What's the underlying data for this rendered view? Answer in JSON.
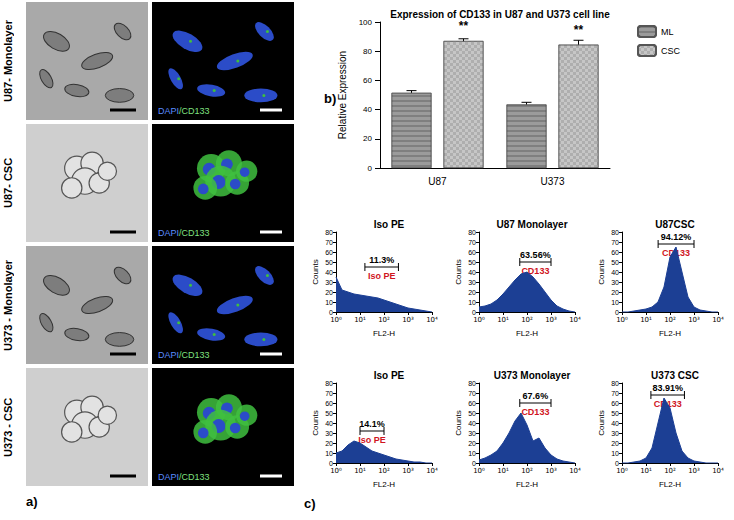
{
  "panel_a": {
    "panel_label": "a)",
    "rows": [
      {
        "label": "U87- Monolayer",
        "stain_label": "DAPI/CD133"
      },
      {
        "label": "U87- CSC",
        "stain_label": "DAPI/CD133"
      },
      {
        "label": "U373 - Monolayer",
        "stain_label": "DAPI/CD133"
      },
      {
        "label": "U373 - CSC",
        "stain_label": "DAPI/CD133"
      }
    ]
  },
  "chart_data": [
    {
      "type": "bar",
      "panel_label": "b)",
      "title": "Expression of CD133 in U87 and U373 cell line",
      "y_label": "Relative Expression",
      "categories": [
        "U87",
        "U373"
      ],
      "series": [
        {
          "name": "ML",
          "color": "#9b9b9b",
          "values": [
            51.5,
            43.5
          ],
          "errors": [
            1.5,
            1.5
          ]
        },
        {
          "name": "CSC",
          "color": "#c6c6c6",
          "values": [
            87,
            84.5
          ],
          "errors": [
            1.5,
            3
          ],
          "annotations": [
            "**",
            "**"
          ]
        }
      ],
      "ylim": [
        0,
        100
      ],
      "yticks": [
        0,
        20,
        40,
        60,
        80,
        100
      ],
      "legend": "top-right",
      "grid": false
    },
    {
      "type": "area",
      "title": "Iso PE",
      "x_label": "FL2-H",
      "y_label": "Counts",
      "color": "#1c3f94",
      "log": "x",
      "x": [
        1,
        1.78,
        3.16,
        5.62,
        10,
        17.8,
        31.6,
        56.2,
        100,
        178,
        316,
        562,
        1000,
        1780,
        3160,
        5620,
        10000
      ],
      "values": [
        35,
        22,
        20,
        18,
        17,
        16,
        15,
        14,
        12,
        10,
        8,
        6,
        4,
        3,
        2,
        1,
        0
      ],
      "xlim": [
        1,
        10000
      ],
      "xticks": [
        {
          "value": 1,
          "label": "10⁰"
        },
        {
          "value": 10,
          "label": "10¹"
        },
        {
          "value": 100,
          "label": "10²"
        },
        {
          "value": 1000,
          "label": "10³"
        },
        {
          "value": 10000,
          "label": "10⁴"
        }
      ],
      "ylim": [
        0,
        80
      ],
      "yticks": [
        0,
        10,
        20,
        30,
        40,
        50,
        60,
        70,
        80
      ],
      "grid": false,
      "gate": {
        "range": [
          16,
          400
        ],
        "percent_label": "11.3%",
        "label": "Iso PE",
        "color": "#d0141e"
      }
    },
    {
      "type": "area",
      "title": "U87 Monolayer",
      "x_label": "FL2-H",
      "y_label": "Counts",
      "color": "#1c3f94",
      "log": "x",
      "x": [
        1,
        1.78,
        3.16,
        5.62,
        10,
        17.8,
        31.6,
        56.2,
        100,
        178,
        316,
        562,
        1000,
        1780,
        3160,
        5620,
        10000
      ],
      "values": [
        5,
        6,
        8,
        12,
        18,
        25,
        32,
        38,
        40,
        35,
        28,
        20,
        12,
        6,
        3,
        1,
        0
      ],
      "xlim": [
        1,
        10000
      ],
      "xticks": [
        {
          "value": 1,
          "label": "10⁰"
        },
        {
          "value": 10,
          "label": "10¹"
        },
        {
          "value": 100,
          "label": "10²"
        },
        {
          "value": 1000,
          "label": "10³"
        },
        {
          "value": 10000,
          "label": "10⁴"
        }
      ],
      "ylim": [
        0,
        80
      ],
      "yticks": [
        0,
        10,
        20,
        30,
        40,
        50,
        60,
        70,
        80
      ],
      "grid": false,
      "gate": {
        "range": [
          50,
          1000
        ],
        "percent_label": "63.56%",
        "label": "CD133",
        "color": "#d0141e"
      }
    },
    {
      "type": "area",
      "title": "U87CSC",
      "x_label": "FL2-H",
      "y_label": "Counts",
      "color": "#1c3f94",
      "log": "x",
      "x": [
        1,
        1.78,
        3.16,
        5.62,
        10,
        17.8,
        31.6,
        56.2,
        100,
        178,
        316,
        562,
        1000,
        1780,
        3160,
        5620,
        10000
      ],
      "values": [
        0,
        0,
        1,
        2,
        3,
        5,
        10,
        25,
        55,
        65,
        40,
        15,
        5,
        2,
        1,
        0,
        0
      ],
      "xlim": [
        1,
        10000
      ],
      "xticks": [
        {
          "value": 1,
          "label": "10⁰"
        },
        {
          "value": 10,
          "label": "10¹"
        },
        {
          "value": 100,
          "label": "10²"
        },
        {
          "value": 1000,
          "label": "10³"
        },
        {
          "value": 10000,
          "label": "10⁴"
        }
      ],
      "ylim": [
        0,
        80
      ],
      "yticks": [
        0,
        10,
        20,
        30,
        40,
        50,
        60,
        70,
        80
      ],
      "grid": false,
      "gate": {
        "range": [
          32,
          1000
        ],
        "percent_label": "94.12%",
        "label": "CD133",
        "color": "#d0141e"
      }
    },
    {
      "type": "area",
      "panel_label": "c)",
      "title": "Iso PE",
      "x_label": "FL2-H",
      "y_label": "Counts",
      "color": "#1c3f94",
      "log": "x",
      "x": [
        1,
        1.78,
        3.16,
        5.62,
        10,
        17.8,
        31.6,
        56.2,
        100,
        178,
        316,
        562,
        1000,
        1780,
        3160,
        5620,
        10000
      ],
      "values": [
        10,
        12,
        18,
        22,
        20,
        16,
        12,
        10,
        8,
        6,
        4,
        3,
        2,
        1,
        1,
        0,
        0
      ],
      "xlim": [
        1,
        10000
      ],
      "xticks": [
        {
          "value": 1,
          "label": "10⁰"
        },
        {
          "value": 10,
          "label": "10¹"
        },
        {
          "value": 100,
          "label": "10²"
        },
        {
          "value": 1000,
          "label": "10³"
        },
        {
          "value": 10000,
          "label": "10⁴"
        }
      ],
      "ylim": [
        0,
        80
      ],
      "yticks": [
        0,
        10,
        20,
        30,
        40,
        50,
        60,
        70,
        80
      ],
      "grid": false,
      "gate": {
        "range": [
          10,
          100
        ],
        "percent_label": "14.1%",
        "label": "Iso PE",
        "color": "#d0141e"
      }
    },
    {
      "type": "area",
      "title": "U373 Monolayer",
      "x_label": "FL2-H",
      "y_label": "Counts",
      "color": "#1c3f94",
      "log": "x",
      "x": [
        1,
        1.78,
        3.16,
        5.62,
        10,
        17.8,
        31.6,
        56.2,
        100,
        178,
        316,
        562,
        1000,
        1780,
        3160,
        5620,
        10000
      ],
      "values": [
        3,
        5,
        8,
        12,
        20,
        30,
        42,
        50,
        38,
        22,
        25,
        15,
        8,
        4,
        2,
        1,
        0
      ],
      "xlim": [
        1,
        10000
      ],
      "xticks": [
        {
          "value": 1,
          "label": "10⁰"
        },
        {
          "value": 10,
          "label": "10¹"
        },
        {
          "value": 100,
          "label": "10²"
        },
        {
          "value": 1000,
          "label": "10³"
        },
        {
          "value": 10000,
          "label": "10⁴"
        }
      ],
      "ylim": [
        0,
        80
      ],
      "yticks": [
        0,
        10,
        20,
        30,
        40,
        50,
        60,
        70,
        80
      ],
      "grid": false,
      "gate": {
        "range": [
          50,
          1000
        ],
        "percent_label": "67.6%",
        "label": "CD133",
        "color": "#d0141e"
      }
    },
    {
      "type": "area",
      "title": "U373 CSC",
      "x_label": "FL2-H",
      "y_label": "Counts",
      "color": "#1c3f94",
      "log": "x",
      "x": [
        1,
        1.78,
        3.16,
        5.62,
        10,
        17.8,
        31.6,
        56.2,
        100,
        178,
        316,
        562,
        1000,
        1780,
        3160,
        5620,
        10000
      ],
      "values": [
        0,
        0,
        1,
        2,
        5,
        15,
        40,
        65,
        55,
        30,
        12,
        5,
        2,
        1,
        0,
        0,
        0
      ],
      "xlim": [
        1,
        10000
      ],
      "xticks": [
        {
          "value": 1,
          "label": "10⁰"
        },
        {
          "value": 10,
          "label": "10¹"
        },
        {
          "value": 100,
          "label": "10²"
        },
        {
          "value": 1000,
          "label": "10³"
        },
        {
          "value": 10000,
          "label": "10⁴"
        }
      ],
      "ylim": [
        0,
        80
      ],
      "yticks": [
        0,
        10,
        20,
        30,
        40,
        50,
        60,
        70,
        80
      ],
      "grid": false,
      "gate": {
        "range": [
          16,
          400
        ],
        "percent_label": "83.91%",
        "label": "CD133",
        "color": "#d0141e"
      }
    }
  ]
}
